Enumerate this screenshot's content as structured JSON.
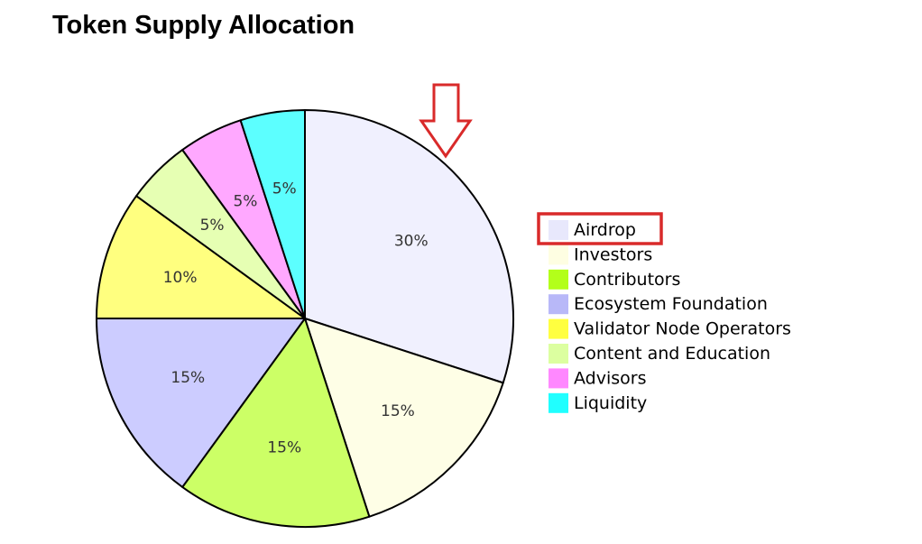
{
  "title": "Token Supply Allocation",
  "chart_data": {
    "type": "pie",
    "title": "Token Supply Allocation",
    "categories": [
      "Airdrop",
      "Investors",
      "Contributors",
      "Ecosystem Foundation",
      "Validator Node Operators",
      "Content and Education",
      "Advisors",
      "Liquidity"
    ],
    "values": [
      30,
      15,
      15,
      15,
      10,
      5,
      5,
      5
    ],
    "labels": [
      "30%",
      "15%",
      "15%",
      "15%",
      "10%",
      "5%",
      "5%",
      "5%"
    ],
    "colors": [
      "#f0f0fe",
      "#fefee6",
      "#ccff66",
      "#ccccff",
      "#ffff7f",
      "#e6ffb3",
      "#ffa8ff",
      "#5cffff"
    ],
    "legend_colors": [
      "#e8e8fc",
      "#fefee2",
      "#b3ff1a",
      "#b8b8f8",
      "#ffff40",
      "#dcffa0",
      "#ff88ff",
      "#20ffff"
    ],
    "legend_position": "right",
    "highlight": {
      "legend_box": "Airdrop",
      "arrow_target": "Airdrop",
      "color": "#d92a2a"
    }
  }
}
